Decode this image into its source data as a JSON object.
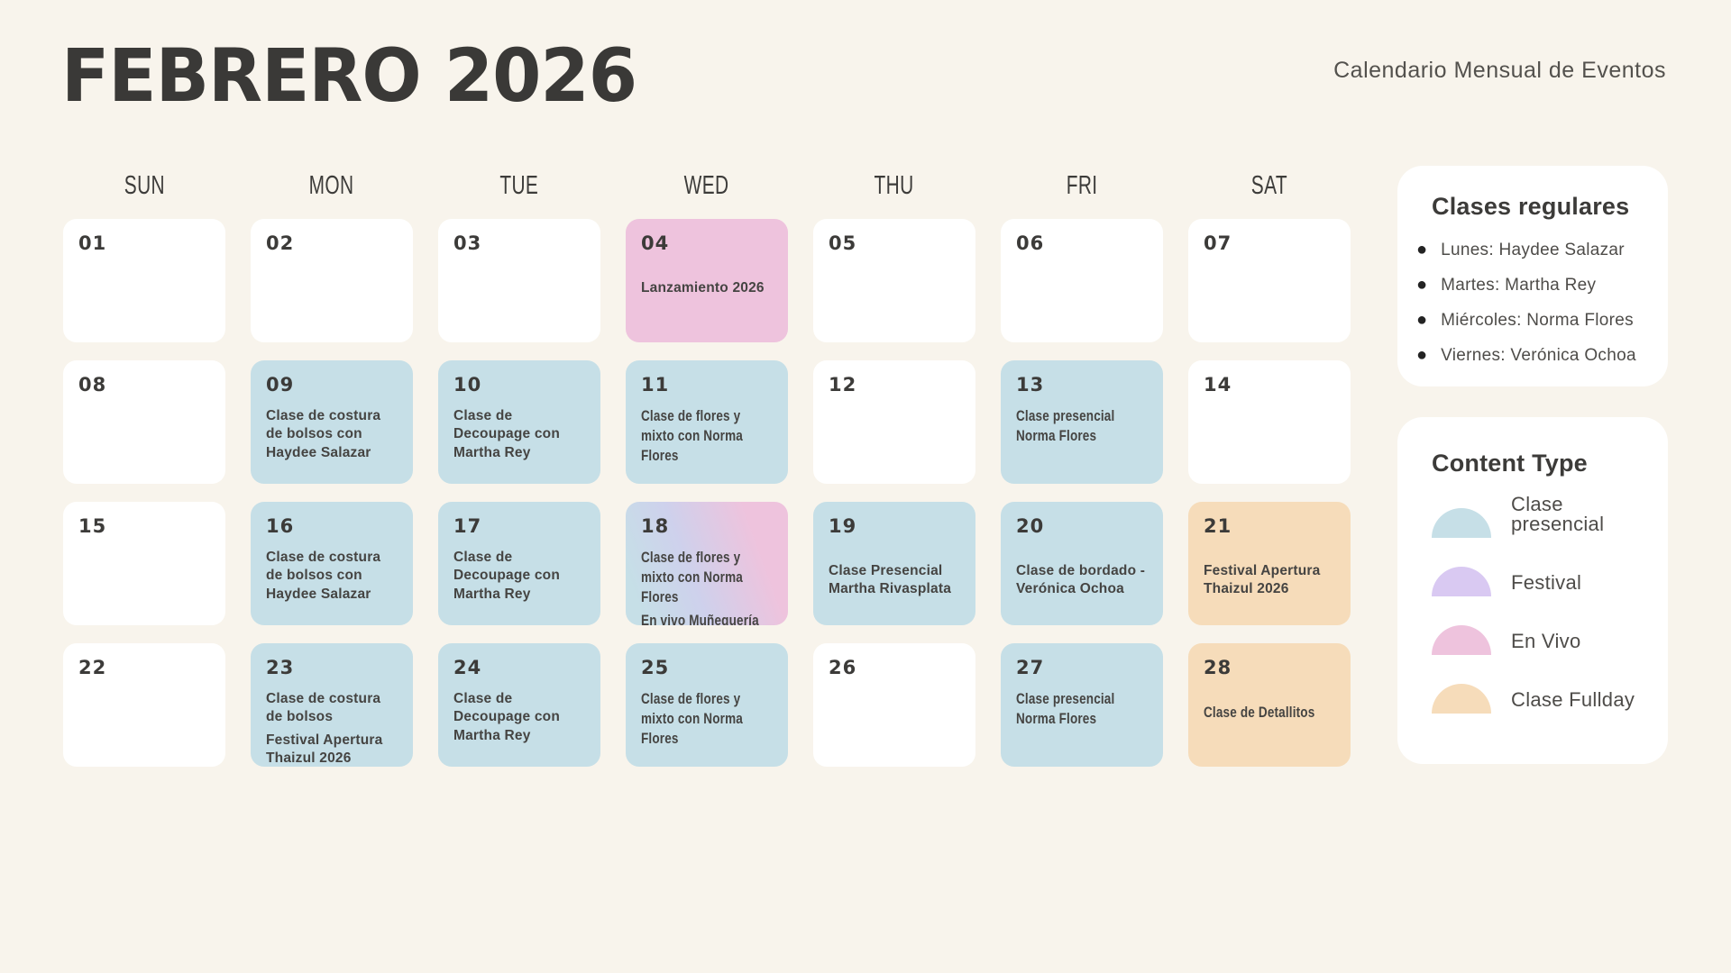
{
  "page": {
    "title": "FEBRERO 2026",
    "subtitle": "Calendario Mensual de Eventos"
  },
  "colors": {
    "background": "#f8f4ec",
    "card_white": "#ffffff",
    "presencial": "#c6dfe7",
    "festival": "#d9c9f2",
    "envivo": "#eec3dd",
    "fullday": "#f6dcba",
    "text_dark": "#3c3b39"
  },
  "weekdays": [
    "SUN",
    "MON",
    "TUE",
    "WED",
    "THU",
    "FRI",
    "SAT"
  ],
  "days": [
    {
      "num": "01",
      "type": "none",
      "events": []
    },
    {
      "num": "02",
      "type": "none",
      "events": []
    },
    {
      "num": "03",
      "type": "none",
      "events": []
    },
    {
      "num": "04",
      "type": "envivo",
      "spaced": true,
      "events": [
        "Lanzamiento 2026"
      ]
    },
    {
      "num": "05",
      "type": "none",
      "events": []
    },
    {
      "num": "06",
      "type": "none",
      "events": []
    },
    {
      "num": "07",
      "type": "none",
      "events": []
    },
    {
      "num": "08",
      "type": "none",
      "events": []
    },
    {
      "num": "09",
      "type": "presencial",
      "events": [
        "Clase de costura de bolsos con Haydee Salazar"
      ]
    },
    {
      "num": "10",
      "type": "presencial",
      "events": [
        "Clase de Decoupage con Martha Rey"
      ]
    },
    {
      "num": "11",
      "type": "presencial",
      "condensed": true,
      "events": [
        "Clase de flores y mixto con Norma Flores"
      ]
    },
    {
      "num": "12",
      "type": "none",
      "events": []
    },
    {
      "num": "13",
      "type": "presencial",
      "condensed": true,
      "events": [
        "Clase presencial Norma Flores"
      ]
    },
    {
      "num": "14",
      "type": "none",
      "events": []
    },
    {
      "num": "15",
      "type": "none",
      "events": []
    },
    {
      "num": "16",
      "type": "presencial",
      "events": [
        "Clase de costura de bolsos con Haydee Salazar"
      ]
    },
    {
      "num": "17",
      "type": "presencial",
      "events": [
        "Clase de Decoupage con Martha Rey"
      ]
    },
    {
      "num": "18",
      "type": "mix",
      "condensed": true,
      "events": [
        "Clase de flores y mixto con Norma Flores",
        "En vivo Muñequería"
      ]
    },
    {
      "num": "19",
      "type": "presencial",
      "spaced": true,
      "events": [
        "Clase Presencial Martha Rivasplata"
      ]
    },
    {
      "num": "20",
      "type": "presencial",
      "spaced": true,
      "events": [
        "Clase de bordado - Verónica Ochoa"
      ]
    },
    {
      "num": "21",
      "type": "fullday",
      "spaced": true,
      "events": [
        "Festival Apertura Thaizul 2026"
      ]
    },
    {
      "num": "22",
      "type": "none",
      "events": []
    },
    {
      "num": "23",
      "type": "presencial",
      "events": [
        "Clase de costura de bolsos",
        "Festival Apertura Thaizul 2026"
      ]
    },
    {
      "num": "24",
      "type": "presencial",
      "events": [
        "Clase de Decoupage con Martha Rey"
      ]
    },
    {
      "num": "25",
      "type": "presencial",
      "condensed": true,
      "events": [
        "Clase de flores y mixto con Norma Flores"
      ]
    },
    {
      "num": "26",
      "type": "none",
      "events": []
    },
    {
      "num": "27",
      "type": "presencial",
      "condensed": true,
      "events": [
        "Clase presencial Norma Flores"
      ]
    },
    {
      "num": "28",
      "type": "fullday",
      "condensed": true,
      "spaced": true,
      "events": [
        "Clase de Detallitos"
      ]
    }
  ],
  "sidebar": {
    "regular": {
      "title": "Clases regulares",
      "items": [
        "Lunes: Haydee Salazar",
        "Martes: Martha Rey",
        "Miércoles: Norma Flores",
        "Viernes: Verónica Ochoa"
      ]
    },
    "legend": {
      "title": "Content Type",
      "items": [
        {
          "label": "Clase presencial",
          "type": "presencial"
        },
        {
          "label": "Festival",
          "type": "festival"
        },
        {
          "label": "En Vivo",
          "type": "envivo"
        },
        {
          "label": "Clase Fullday",
          "type": "fullday"
        }
      ]
    }
  }
}
